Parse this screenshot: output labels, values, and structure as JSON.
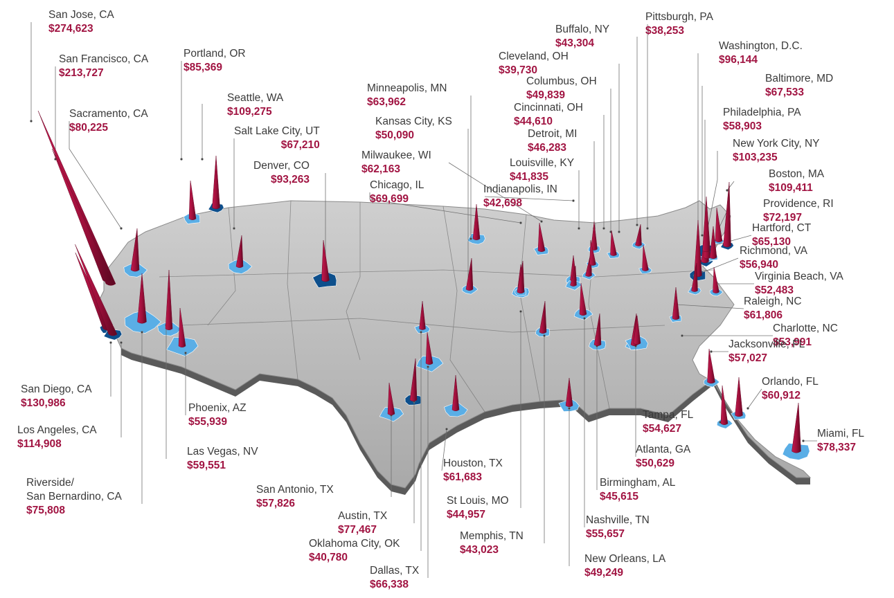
{
  "colors": {
    "spike": "#a3123f",
    "spike_dark": "#6d0a2a",
    "value_text": "#a11442",
    "metro_light": "#5aaee6",
    "metro_dark": "#0d4f8c",
    "land": "#b9b9b9"
  },
  "map": {
    "kind": "3d-relief-us-map-with-spikes"
  },
  "metros": [
    {
      "name": "San Jose, CA",
      "value": "$274,623"
    },
    {
      "name": "San Francisco, CA",
      "value": "$213,727"
    },
    {
      "name": "Sacramento, CA",
      "value": "$80,225"
    },
    {
      "name": "Portland, OR",
      "value": "$85,369"
    },
    {
      "name": "Seattle, WA",
      "value": "$109,275"
    },
    {
      "name": "Salt Lake City, UT",
      "value": "$67,210"
    },
    {
      "name": "Denver, CO",
      "value": "$93,263"
    },
    {
      "name": "Minneapolis, MN",
      "value": "$63,962"
    },
    {
      "name": "Kansas City, KS",
      "value": "$50,090"
    },
    {
      "name": "Milwaukee, WI",
      "value": "$62,163"
    },
    {
      "name": "Chicago, IL",
      "value": "$69,699"
    },
    {
      "name": "Buffalo, NY",
      "value": "$43,304"
    },
    {
      "name": "Cleveland, OH",
      "value": "$39,730"
    },
    {
      "name": "Columbus, OH",
      "value": "$49,839"
    },
    {
      "name": "Cincinnati, OH",
      "value": "$44,610"
    },
    {
      "name": "Detroit, MI",
      "value": "$46,283"
    },
    {
      "name": "Louisville, KY",
      "value": "$41,835"
    },
    {
      "name": "Indianapolis, IN",
      "value": "$42,698"
    },
    {
      "name": "Pittsburgh, PA",
      "value": "$38,253"
    },
    {
      "name": "Washington, D.C.",
      "value": "$96,144"
    },
    {
      "name": "Baltimore, MD",
      "value": "$67,533"
    },
    {
      "name": "Philadelphia, PA",
      "value": "$58,903"
    },
    {
      "name": "New York City, NY",
      "value": "$103,235"
    },
    {
      "name": "Boston, MA",
      "value": "$109,411"
    },
    {
      "name": "Providence, RI",
      "value": "$72,197"
    },
    {
      "name": "Hartford, CT",
      "value": "$65,130"
    },
    {
      "name": "Richmond, VA",
      "value": "$56,940"
    },
    {
      "name": "Virginia Beach, VA",
      "value": "$52,483"
    },
    {
      "name": "Raleigh, NC",
      "value": "$61,806"
    },
    {
      "name": "Charlotte, NC",
      "value": "$53,991"
    },
    {
      "name": "Jacksonville, FL",
      "value": "$57,027"
    },
    {
      "name": "Orlando, FL",
      "value": "$60,912"
    },
    {
      "name": "Miami, FL",
      "value": "$78,337"
    },
    {
      "name": "Tampa, FL",
      "value": "$54,627"
    },
    {
      "name": "Atlanta, GA",
      "value": "$50,629"
    },
    {
      "name": "Birmingham, AL",
      "value": "$45,615"
    },
    {
      "name": "Nashville, TN",
      "value": "$55,657"
    },
    {
      "name": "New Orleans, LA",
      "value": "$49,249"
    },
    {
      "name": "Memphis, TN",
      "value": "$43,023"
    },
    {
      "name": "Dallas, TX",
      "value": "$66,338"
    },
    {
      "name": "Oklahoma City, OK",
      "value": "$40,780"
    },
    {
      "name": "Austin, TX",
      "value": "$77,467"
    },
    {
      "name": "San Antonio, TX",
      "value": "$57,826"
    },
    {
      "name": "Houston, TX",
      "value": "$61,683"
    },
    {
      "name": "St Louis, MO",
      "value": "$44,957"
    },
    {
      "name": "Phoenix, AZ",
      "value": "$55,939"
    },
    {
      "name": "Las Vegas, NV",
      "value": "$59,551"
    },
    {
      "name": "San Diego, CA",
      "value": "$130,986"
    },
    {
      "name": "Los Angeles, CA",
      "value": "$114,908"
    },
    {
      "name": "Riverside/ San Bernardino, CA",
      "value": "$75,808"
    }
  ]
}
